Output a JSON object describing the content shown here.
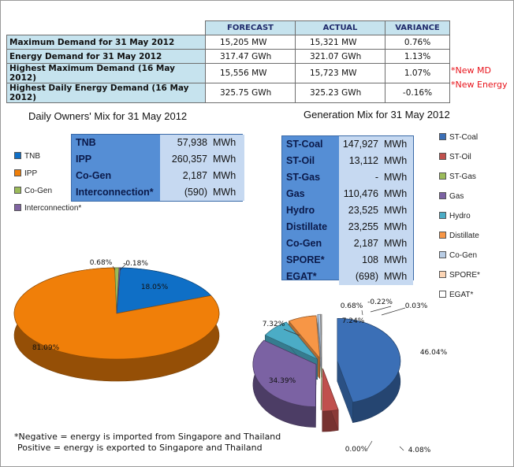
{
  "summary_table": {
    "headers": [
      "FORECAST",
      "ACTUAL",
      "VARIANCE"
    ],
    "rows": [
      {
        "label": "Maximum Demand for 31 May 2012",
        "forecast": "15,205  MW",
        "actual": "15,321  MW",
        "variance": "0.76%",
        "note": ""
      },
      {
        "label": "Energy Demand for 31 May 2012",
        "forecast": "317.47  GWh",
        "actual": "321.07  GWh",
        "variance": "1.13%",
        "note": ""
      },
      {
        "label": "Highest Maximum Demand (16 May 2012)",
        "forecast": "15,556  MW",
        "actual": "15,723  MW",
        "variance": "1.07%",
        "note": "*New MD"
      },
      {
        "label": "Highest Daily Energy Demand (16 May 2012)",
        "forecast": "325.75  GWh",
        "actual": "325.23  GWh",
        "variance": "-0.16%",
        "note": "*New Energy"
      }
    ]
  },
  "owners_box": {
    "rows": [
      {
        "label": "TNB",
        "value": "57,938",
        "unit": "MWh"
      },
      {
        "label": "IPP",
        "value": "260,357",
        "unit": "MWh"
      },
      {
        "label": "Co-Gen",
        "value": "2,187",
        "unit": "MWh"
      },
      {
        "label": "Interconnection*",
        "value": "(590)",
        "unit": "MWh"
      }
    ]
  },
  "generation_box": {
    "rows": [
      {
        "label": "ST-Coal",
        "value": "147,927",
        "unit": "MWh"
      },
      {
        "label": "ST-Oil",
        "value": "13,112",
        "unit": "MWh"
      },
      {
        "label": "ST-Gas",
        "value": "-",
        "unit": "MWh"
      },
      {
        "label": "Gas",
        "value": "110,476",
        "unit": "MWh"
      },
      {
        "label": "Hydro",
        "value": "23,525",
        "unit": "MWh"
      },
      {
        "label": "Distillate",
        "value": "23,255",
        "unit": "MWh"
      },
      {
        "label": "Co-Gen",
        "value": "2,187",
        "unit": "MWh"
      },
      {
        "label": "SPORE*",
        "value": "108",
        "unit": "MWh"
      },
      {
        "label": "EGAT*",
        "value": "(698)",
        "unit": "MWh"
      }
    ]
  },
  "footnote": {
    "line1": "*Negative = energy is imported from Singapore and Thailand",
    "line2": "Positive = energy is exported to Singapore and Thailand"
  },
  "chart_data": [
    {
      "type": "pie",
      "title": "Daily Owners' Mix for 31 May 2012",
      "legend_position": "left",
      "slices": [
        {
          "name": "TNB",
          "value": 18.05,
          "label": "18.05%",
          "color": "#0f6fc6"
        },
        {
          "name": "IPP",
          "value": 81.09,
          "label": "81.09%",
          "color": "#f07f09"
        },
        {
          "name": "Co-Gen",
          "value": 0.68,
          "label": "0.68%",
          "color": "#9bbb59"
        },
        {
          "name": "Interconnection*",
          "value": -0.18,
          "label": "-0.18%",
          "color": "#8064a2"
        }
      ]
    },
    {
      "type": "pie",
      "title": "Generation Mix for 31 May 2012",
      "legend_position": "right",
      "slices": [
        {
          "name": "ST-Coal",
          "value": 46.04,
          "label": "46.04%",
          "color": "#3b6fb6"
        },
        {
          "name": "ST-Oil",
          "value": 4.08,
          "label": "4.08%",
          "color": "#c0504d"
        },
        {
          "name": "ST-Gas",
          "value": 0.0,
          "label": "0.00%",
          "color": "#9bbb59"
        },
        {
          "name": "Gas",
          "value": 34.39,
          "label": "34.39%",
          "color": "#7b62a3"
        },
        {
          "name": "Hydro",
          "value": 7.32,
          "label": "7.32%",
          "color": "#4bacc6"
        },
        {
          "name": "Distillate",
          "value": 7.24,
          "label": "7.24%",
          "color": "#f79646"
        },
        {
          "name": "Co-Gen",
          "value": 0.68,
          "label": "0.68%",
          "color": "#b9cde5"
        },
        {
          "name": "SPORE*",
          "value": 0.03,
          "label": "0.03%",
          "color": "#fcd5b5"
        },
        {
          "name": "EGAT*",
          "value": -0.22,
          "label": "-0.22%",
          "color": "#d9d9d9"
        }
      ]
    }
  ]
}
